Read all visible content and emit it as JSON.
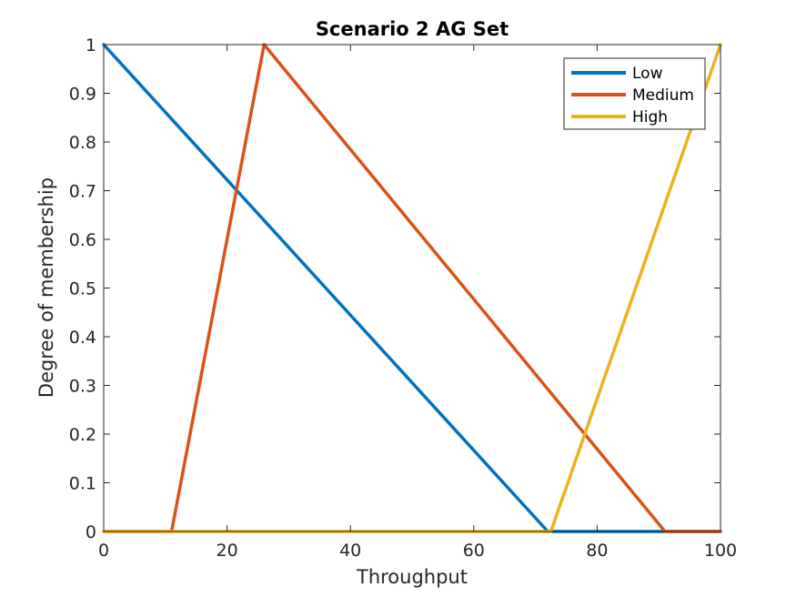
{
  "chart_data": {
    "type": "line",
    "title": "Scenario 2 AG Set",
    "xlabel": "Throughput",
    "ylabel": "Degree of membership",
    "xlim": [
      0,
      100
    ],
    "ylim": [
      0,
      1
    ],
    "xticks": [
      0,
      20,
      40,
      60,
      80,
      100
    ],
    "yticks": [
      0,
      0.1,
      0.2,
      0.3,
      0.4,
      0.5,
      0.6,
      0.7,
      0.8,
      0.9,
      1
    ],
    "grid": false,
    "legend_position": "top-right",
    "series": [
      {
        "name": "Low",
        "color": "#0072BD",
        "x": [
          0,
          72,
          100
        ],
        "y": [
          1,
          0,
          0
        ]
      },
      {
        "name": "Medium",
        "color": "#D95319",
        "x": [
          0,
          11,
          26,
          91,
          100
        ],
        "y": [
          0,
          0,
          1,
          0,
          0
        ]
      },
      {
        "name": "High",
        "color": "#EDB120",
        "x": [
          0,
          72.5,
          100
        ],
        "y": [
          0,
          0,
          1
        ]
      }
    ]
  }
}
